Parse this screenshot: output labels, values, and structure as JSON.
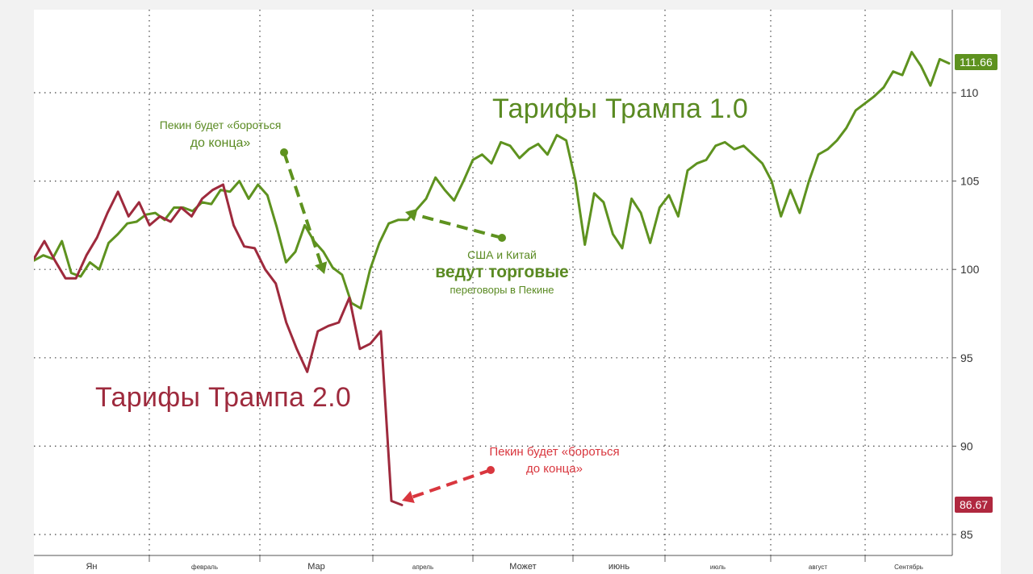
{
  "chart_data": {
    "type": "line",
    "title": "",
    "xlabel": "",
    "ylabel": "",
    "ylim": [
      84,
      114
    ],
    "yticks": [
      85,
      90,
      95,
      100,
      105,
      110
    ],
    "grid": true,
    "x_axis_months": [
      "Ян",
      "февраль",
      "Мар",
      "апрель",
      "Может",
      "июнь",
      "июль",
      "август",
      "Сентябрь"
    ],
    "series": [
      {
        "name": "Тарифы Трампа 1.0",
        "color": "#5e921f",
        "last_value": "111.66",
        "values": [
          100.5,
          100.8,
          100.6,
          101.6,
          99.8,
          99.6,
          100.4,
          100.0,
          101.5,
          102.0,
          102.6,
          102.7,
          103.1,
          103.2,
          102.8,
          103.5,
          103.5,
          103.3,
          103.8,
          103.7,
          104.5,
          104.4,
          105.0,
          104.0,
          104.8,
          104.2,
          102.4,
          100.4,
          101.0,
          102.5,
          101.6,
          101.0,
          100.1,
          99.7,
          98.1,
          97.8,
          100.0,
          101.5,
          102.6,
          102.8,
          102.8,
          103.4,
          104.0,
          105.2,
          104.5,
          103.9,
          105.0,
          106.2,
          106.5,
          106.0,
          107.2,
          107.0,
          106.3,
          106.8,
          107.1,
          106.5,
          107.6,
          107.3,
          105.0,
          101.4,
          104.3,
          103.8,
          102.0,
          101.2,
          104.0,
          103.2,
          101.5,
          103.5,
          104.2,
          103.0,
          105.6,
          106.0,
          106.2,
          107.0,
          107.2,
          106.8,
          107.0,
          106.5,
          106.0,
          105.0,
          103.0,
          104.5,
          103.2,
          105.0,
          106.5,
          106.8,
          107.3,
          108.0,
          109.0,
          109.4,
          109.8,
          110.3,
          111.2,
          111.0,
          112.3,
          111.5,
          110.4,
          111.9,
          111.66
        ]
      },
      {
        "name": "Тарифы Трампа 2.0",
        "color": "#9e2a3d",
        "last_value": "86.67",
        "values": [
          100.6,
          101.6,
          100.5,
          99.5,
          99.5,
          100.8,
          101.8,
          103.2,
          104.4,
          103.0,
          103.8,
          102.5,
          103.0,
          102.7,
          103.5,
          103.0,
          104.0,
          104.5,
          104.8,
          102.5,
          101.3,
          101.2,
          100.0,
          99.2,
          97.0,
          95.5,
          94.2,
          96.5,
          96.8,
          97.0,
          98.4,
          95.5,
          95.8,
          96.5,
          86.9,
          86.67
        ]
      }
    ],
    "annotations": {
      "green_title": "Тарифы Трампа 1.0",
      "red_title": "Тарифы Трампа 2.0",
      "green_note_top_line1": "Пекин будет «бороться",
      "green_note_top_line2": "до конца»",
      "talks_line1": "США и Китай",
      "talks_line2": "ведут торговые",
      "talks_line3": "переговоры в Пекине",
      "red_note_line1": "Пекин будет «бороться",
      "red_note_line2": "до конца»"
    }
  }
}
